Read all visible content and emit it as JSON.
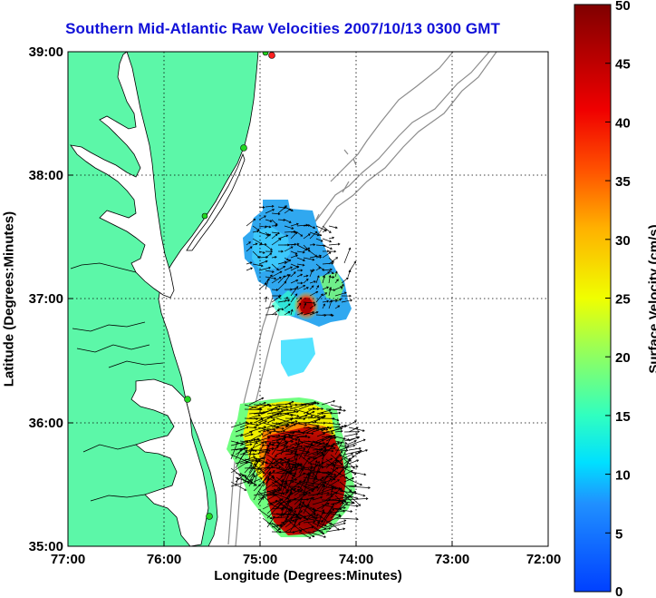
{
  "title": "Southern Mid-Atlantic Raw Velocities 2007/10/13 0300 GMT",
  "chart_data": {
    "type": "heatmap",
    "title": "Southern Mid-Atlantic Raw Velocities 2007/10/13 0300 GMT",
    "xlabel": "Longitude (Degrees:Minutes)",
    "ylabel": "Latitude (Degrees:Minutes)",
    "colorbar_label": "Surface Velocity (cm/s)",
    "x_ticks": [
      "77:00",
      "76:00",
      "75:00",
      "74:00",
      "73:00",
      "72:00"
    ],
    "y_ticks": [
      "39:00",
      "38:00",
      "37:00",
      "36:00",
      "35:00"
    ],
    "colorbar_ticks": [
      "50",
      "45",
      "40",
      "35",
      "30",
      "25",
      "20",
      "15",
      "10",
      "5",
      "0"
    ],
    "xlim": [
      -77,
      -72
    ],
    "ylim": [
      35,
      39
    ],
    "clim": [
      0,
      50
    ],
    "grid": true,
    "colors": {
      "land": "#5cf7a8",
      "coastline": "#000000",
      "bathymetry": "#8c8c8c",
      "stations": "#22d822",
      "title": "#1010d8"
    }
  }
}
